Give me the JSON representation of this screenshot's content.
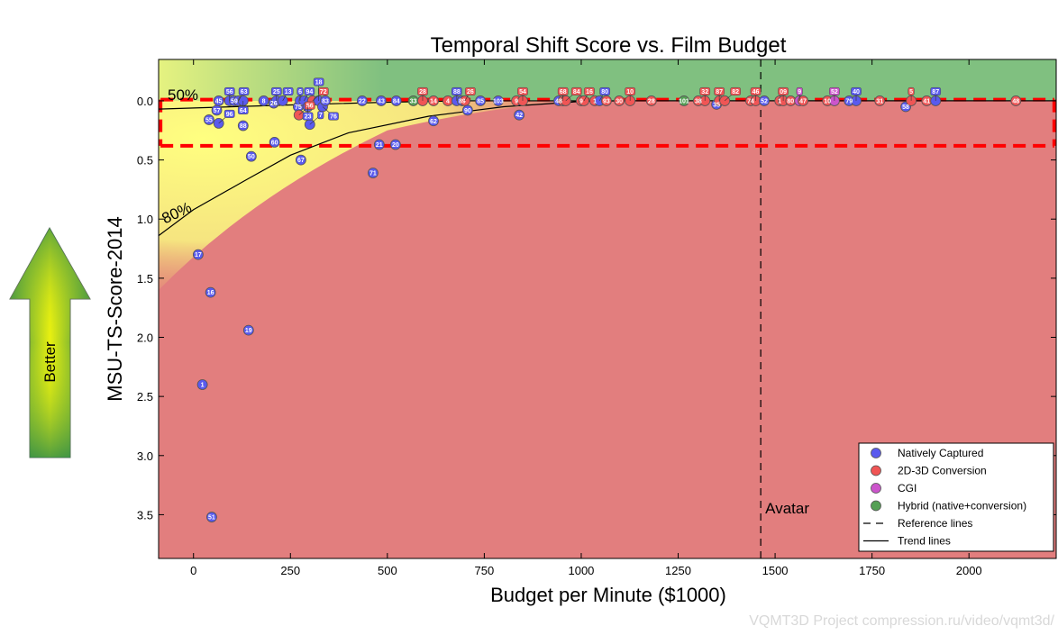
{
  "chart_data": {
    "type": "scatter",
    "title": "Temporal Shift Score vs. Film Budget",
    "xlabel": "Budget per Minute ($1000)",
    "ylabel": "MSU-TS-Score-2014",
    "xlim": [
      -90,
      2225
    ],
    "ylim": [
      3.87,
      -0.35
    ],
    "y_inverted": true,
    "xticks": [
      0,
      250,
      500,
      750,
      1000,
      1250,
      1500,
      1750,
      2000
    ],
    "yticks": [
      0.0,
      0.5,
      1.0,
      1.5,
      2.0,
      2.5,
      3.0,
      3.5
    ],
    "grid": false,
    "legend_placement": "bottom-right",
    "colors": {
      "native": "#5a5aee",
      "conversion": "#f05555",
      "cgi": "#cc55cc",
      "hybrid": "#55a055",
      "good_region": "#80c080",
      "bad_region": "#e27e7e",
      "mid_region": "#ffff80",
      "reference": "#ff0000"
    },
    "legend": [
      {
        "key": "native",
        "label": "Natively Captured",
        "marker": "circle"
      },
      {
        "key": "conversion",
        "label": "2D-3D Conversion",
        "marker": "circle"
      },
      {
        "key": "cgi",
        "label": "CGI",
        "marker": "circle"
      },
      {
        "key": "hybrid",
        "label": "Hybrid (native+conversion)",
        "marker": "circle"
      },
      {
        "key": "reference",
        "label": "Reference lines",
        "marker": "dashed"
      },
      {
        "key": "trend",
        "label": "Trend lines",
        "marker": "solid"
      }
    ],
    "points": [
      {
        "id": "45",
        "x": 65,
        "y": 0,
        "type": "native"
      },
      {
        "id": "56",
        "x": 93,
        "y": 0,
        "type": "native"
      },
      {
        "id": "59",
        "x": 105,
        "y": 0,
        "type": "native"
      },
      {
        "id": "63",
        "x": 116,
        "y": 0,
        "type": "native"
      },
      {
        "id": "64",
        "x": 128,
        "y": 0,
        "type": "native"
      },
      {
        "id": "8",
        "x": 181,
        "y": 0,
        "type": "native"
      },
      {
        "id": "26",
        "x": 207,
        "y": 0.02,
        "type": "native"
      },
      {
        "id": "25",
        "x": 214,
        "y": 0,
        "type": "native"
      },
      {
        "id": "13",
        "x": 230,
        "y": 0,
        "type": "native"
      },
      {
        "id": "6",
        "x": 275,
        "y": 0,
        "type": "native"
      },
      {
        "id": "94",
        "x": 285,
        "y": 0,
        "type": "native"
      },
      {
        "id": "72",
        "x": 307,
        "y": 0,
        "type": "conversion"
      },
      {
        "id": "18",
        "x": 323,
        "y": 0,
        "type": "native"
      },
      {
        "id": "83",
        "x": 340,
        "y": 0,
        "type": "native"
      },
      {
        "id": "22",
        "x": 435,
        "y": 0,
        "type": "native"
      },
      {
        "id": "43",
        "x": 484,
        "y": 0,
        "type": "native"
      },
      {
        "id": "84",
        "x": 523,
        "y": 0,
        "type": "native"
      },
      {
        "id": "33",
        "x": 567,
        "y": 0,
        "type": "hybrid"
      },
      {
        "id": "28",
        "x": 591,
        "y": 0,
        "type": "conversion"
      },
      {
        "id": "14",
        "x": 619,
        "y": 0,
        "type": "conversion"
      },
      {
        "id": "4",
        "x": 656,
        "y": 0,
        "type": "conversion"
      },
      {
        "id": "88",
        "x": 679,
        "y": 0,
        "type": "native"
      },
      {
        "id": "89",
        "x": 693,
        "y": 0,
        "type": "native"
      },
      {
        "id": "26",
        "x": 700,
        "y": 0,
        "type": "conversion"
      },
      {
        "id": "85",
        "x": 740,
        "y": 0,
        "type": "native"
      },
      {
        "id": "103",
        "x": 786,
        "y": 0,
        "type": "native"
      },
      {
        "id": "9",
        "x": 833,
        "y": 0,
        "type": "conversion"
      },
      {
        "id": "54",
        "x": 849,
        "y": 0,
        "type": "conversion"
      },
      {
        "id": "48",
        "x": 942,
        "y": 0,
        "type": "native"
      },
      {
        "id": "68",
        "x": 953,
        "y": 0,
        "type": "conversion"
      },
      {
        "id": "84",
        "x": 960,
        "y": 0,
        "type": "conversion"
      },
      {
        "id": "9",
        "x": 1000,
        "y": 0,
        "type": "conversion"
      },
      {
        "id": "16",
        "x": 1007,
        "y": 0,
        "type": "conversion"
      },
      {
        "id": "1",
        "x": 1035,
        "y": 0,
        "type": "conversion"
      },
      {
        "id": "80",
        "x": 1047,
        "y": 0,
        "type": "native"
      },
      {
        "id": "93",
        "x": 1065,
        "y": 0,
        "type": "conversion"
      },
      {
        "id": "30",
        "x": 1098,
        "y": 0,
        "type": "conversion"
      },
      {
        "id": "10",
        "x": 1126,
        "y": 0,
        "type": "conversion"
      },
      {
        "id": "28",
        "x": 1181,
        "y": 0,
        "type": "conversion"
      },
      {
        "id": "101",
        "x": 1265,
        "y": 0,
        "type": "hybrid"
      },
      {
        "id": "38",
        "x": 1302,
        "y": 0,
        "type": "conversion"
      },
      {
        "id": "32",
        "x": 1319,
        "y": 0,
        "type": "conversion"
      },
      {
        "id": "87",
        "x": 1356,
        "y": 0,
        "type": "conversion"
      },
      {
        "id": "82",
        "x": 1370,
        "y": 0,
        "type": "conversion"
      },
      {
        "id": "35",
        "x": 1349,
        "y": 0.03,
        "type": "native"
      },
      {
        "id": "74",
        "x": 1437,
        "y": 0,
        "type": "conversion"
      },
      {
        "id": "46",
        "x": 1450,
        "y": 0,
        "type": "conversion"
      },
      {
        "id": "52",
        "x": 1472,
        "y": 0,
        "type": "native"
      },
      {
        "id": "1",
        "x": 1512,
        "y": 0,
        "type": "conversion"
      },
      {
        "id": "09",
        "x": 1521,
        "y": 0,
        "type": "conversion"
      },
      {
        "id": "80",
        "x": 1540,
        "y": 0,
        "type": "conversion"
      },
      {
        "id": "9",
        "x": 1563,
        "y": 0,
        "type": "cgi"
      },
      {
        "id": "47",
        "x": 1572,
        "y": 0,
        "type": "conversion"
      },
      {
        "id": "10",
        "x": 1635,
        "y": 0,
        "type": "conversion"
      },
      {
        "id": "52",
        "x": 1653,
        "y": 0,
        "type": "cgi"
      },
      {
        "id": "79",
        "x": 1691,
        "y": 0,
        "type": "native"
      },
      {
        "id": "40",
        "x": 1709,
        "y": 0,
        "type": "native"
      },
      {
        "id": "31",
        "x": 1770,
        "y": 0,
        "type": "conversion"
      },
      {
        "id": "58",
        "x": 1837,
        "y": 0.05,
        "type": "native"
      },
      {
        "id": "5",
        "x": 1851,
        "y": 0,
        "type": "conversion"
      },
      {
        "id": "41",
        "x": 1891,
        "y": 0,
        "type": "conversion"
      },
      {
        "id": "87",
        "x": 1914,
        "y": 0,
        "type": "native"
      },
      {
        "id": "48",
        "x": 2121,
        "y": 0,
        "type": "conversion"
      },
      {
        "id": "57",
        "x": 60,
        "y": 0.08,
        "type": "native"
      },
      {
        "id": "55",
        "x": 40,
        "y": 0.16,
        "type": "native"
      },
      {
        "id": "96",
        "x": 65,
        "y": 0.19,
        "type": "native"
      },
      {
        "id": "88",
        "x": 128,
        "y": 0.21,
        "type": "native"
      },
      {
        "id": "75",
        "x": 270,
        "y": 0.05,
        "type": "native"
      },
      {
        "id": "23",
        "x": 295,
        "y": 0.05,
        "type": "native"
      },
      {
        "id": "76",
        "x": 333,
        "y": 0.05,
        "type": "native"
      },
      {
        "id": "56",
        "x": 272,
        "y": 0.12,
        "type": "conversion"
      },
      {
        "id": "7",
        "x": 300,
        "y": 0.2,
        "type": "native"
      },
      {
        "id": "60",
        "x": 209,
        "y": 0.35,
        "type": "native"
      },
      {
        "id": "90",
        "x": 707,
        "y": 0.08,
        "type": "native"
      },
      {
        "id": "62",
        "x": 619,
        "y": 0.17,
        "type": "native"
      },
      {
        "id": "42",
        "x": 840,
        "y": 0.12,
        "type": "native"
      },
      {
        "id": "21",
        "x": 479,
        "y": 0.37,
        "type": "native"
      },
      {
        "id": "20",
        "x": 521,
        "y": 0.37,
        "type": "native"
      },
      {
        "id": "50",
        "x": 149,
        "y": 0.47,
        "type": "native"
      },
      {
        "id": "67",
        "x": 277,
        "y": 0.5,
        "type": "native"
      },
      {
        "id": "71",
        "x": 463,
        "y": 0.61,
        "type": "native"
      },
      {
        "id": "17",
        "x": 12,
        "y": 1.3,
        "type": "native"
      },
      {
        "id": "16",
        "x": 44,
        "y": 1.62,
        "type": "native"
      },
      {
        "id": "19",
        "x": 142,
        "y": 1.94,
        "type": "native"
      },
      {
        "id": "1",
        "x": 23,
        "y": 2.4,
        "type": "native"
      },
      {
        "id": "51",
        "x": 47,
        "y": 3.52,
        "type": "native"
      }
    ],
    "trend_lines": [
      {
        "label": "50%",
        "points": [
          [
            -90,
            0.07
          ],
          [
            100,
            0.05
          ],
          [
            300,
            0.03
          ],
          [
            500,
            0.012
          ],
          [
            700,
            0.0
          ],
          [
            2225,
            0.0
          ]
        ]
      },
      {
        "label": "80%",
        "points": [
          [
            -90,
            1.14
          ],
          [
            0,
            0.92
          ],
          [
            135,
            0.67
          ],
          [
            250,
            0.46
          ],
          [
            400,
            0.27
          ],
          [
            607,
            0.13
          ],
          [
            800,
            0.05
          ],
          [
            1000,
            0.005
          ],
          [
            1100,
            0.0
          ],
          [
            2225,
            0.0
          ]
        ]
      }
    ],
    "reference_lines": {
      "horizontal": [
        -0.01,
        0.38
      ],
      "vertical_box_x": [
        -85,
        2220
      ],
      "avatar": {
        "x": 1463,
        "label": "Avatar"
      }
    }
  },
  "side_arrow": {
    "label": "Better"
  },
  "watermark": "VQMT3D Project compression.ru/video/vqmt3d/"
}
